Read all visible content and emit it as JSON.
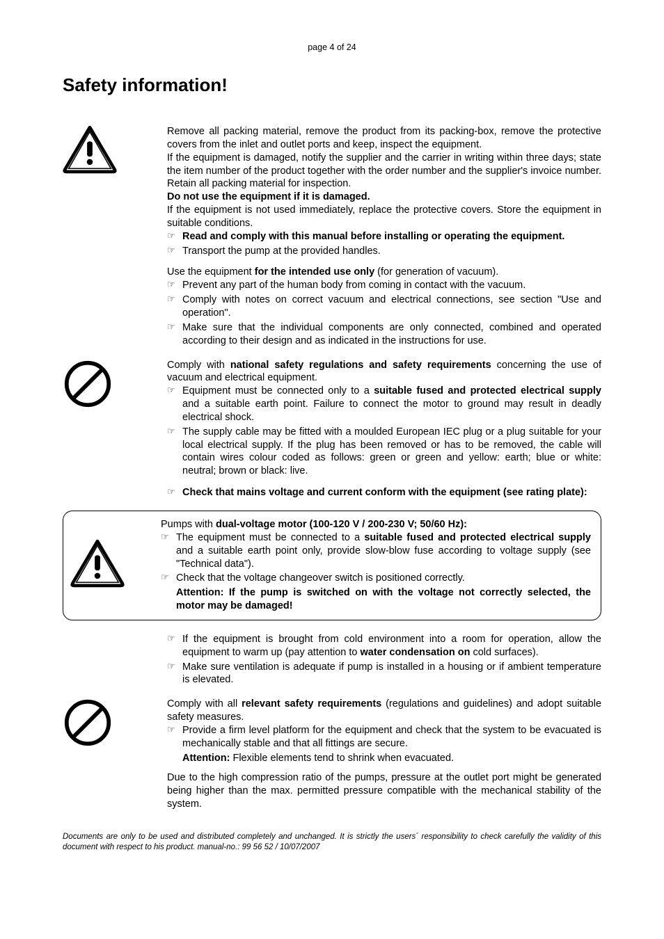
{
  "pageNum": "page 4 of 24",
  "title": "Safety information!",
  "pointer": "☞",
  "sections": [
    {
      "id": "s1",
      "icon": "warning",
      "paragraphs": [
        {
          "type": "p",
          "html": "Remove all packing material, remove the product from its packing-box, remove the protective covers from the inlet and outlet ports and keep, inspect the equipment."
        },
        {
          "type": "p",
          "html": "If the equipment is damaged, notify the supplier and the carrier in writing within three days; state the item number of the product together with the order number and the supplier's invoice number. Retain all packing material for inspection."
        },
        {
          "type": "p",
          "html": "<b>Do not use the equipment if it is damaged.</b>"
        },
        {
          "type": "p",
          "html": "If the equipment is not used immediately, replace the protective covers. Store the equipment in suitable conditions."
        },
        {
          "type": "li",
          "html": "<b>Read and comply with this manual before installing or operating the equipment.</b>"
        },
        {
          "type": "li",
          "html": "Transport the pump at the provided handles."
        },
        {
          "type": "spacer"
        },
        {
          "type": "p",
          "html": "Use the equipment <b>for the intended use only</b> (for generation of vacuum)."
        },
        {
          "type": "li",
          "html": "Prevent any part of the human body from coming in contact with the vacuum."
        },
        {
          "type": "li",
          "html": "Comply with notes on correct vacuum and electrical connections, see section \"Use and operation\"."
        },
        {
          "type": "li",
          "html": "Make sure that the individual components are only connected, combined and operated according to their design and as indicated in the instructions for use."
        }
      ]
    },
    {
      "id": "s2",
      "icon": "prohibit",
      "paragraphs": [
        {
          "type": "p",
          "html": "Comply with <b>national safety regulations and safety requirements</b> concerning the use of vacuum and electrical equipment."
        },
        {
          "type": "li",
          "html": "Equipment must be connected only to a <b>suitable fused and protected electrical supply</b> and a suitable earth point. Failure to connect the motor to ground may result in deadly electrical shock."
        },
        {
          "type": "li",
          "html": "The supply cable may be fitted with a moulded European IEC plug or a plug suitable for your local electrical supply. If the plug has been removed or has to be removed, the cable will contain wires colour coded as follows: green or green and yellow: earth; blue or white: neutral; brown or black: live."
        },
        {
          "type": "spacer"
        },
        {
          "type": "li",
          "html": "<b>Check that mains voltage and current conform with the equipment (see rating plate):</b>"
        }
      ]
    }
  ],
  "boxed": {
    "icon": "warning",
    "paragraphs": [
      {
        "type": "p",
        "html": "Pumps with <b>dual-voltage motor (100-120 V / 200-230 V; 50/60 Hz):</b>"
      },
      {
        "type": "li",
        "html": "The equipment must be connected to a <b>suitable fused and protected electrical supply</b> and a suitable earth point only,  provide slow-blow fuse according to voltage supply (see \"Technical data\")."
      },
      {
        "type": "li",
        "html": "Check that the voltage changeover switch is positioned correctly."
      },
      {
        "type": "p-indent",
        "html": "<b>Attention: If the pump is switched on with the voltage not correctly selected, the motor may be damaged!</b>"
      }
    ]
  },
  "sections2": [
    {
      "id": "s3",
      "icon": null,
      "paragraphs": [
        {
          "type": "li",
          "html": "If the equipment is brought from cold environment into a room for operation, allow the equipment to warm up (pay attention to <b>water condensation on</b> cold surfaces)."
        },
        {
          "type": "li",
          "html": "Make sure ventilation is adequate if pump is installed in a housing or if ambient temperature is elevated."
        }
      ]
    },
    {
      "id": "s4",
      "icon": "prohibit",
      "paragraphs": [
        {
          "type": "p",
          "html": "Comply with all <b>relevant safety requirements</b> (regulations and guidelines) and adopt suitable safety measures."
        },
        {
          "type": "li",
          "html": "Provide a firm level platform for the equipment and check that the system to be evacuated is mechanically stable and that all fittings are secure."
        },
        {
          "type": "p-indent",
          "html": "<b>Attention:</b> Flexible elements tend to shrink when evacuated."
        },
        {
          "type": "spacer"
        },
        {
          "type": "p",
          "html": "Due to the high compression ratio of the pumps, pressure at the outlet port might be generated being higher than the max. permitted pressure compatible with the mechanical stability of the system."
        }
      ]
    }
  ],
  "footer": "Documents are only to be used and distributed completely and unchanged. It is strictly the users´ responsibility to check carefully the validity of this document with respect to his product. manual-no.: 99 56 52  / 10/07/2007"
}
